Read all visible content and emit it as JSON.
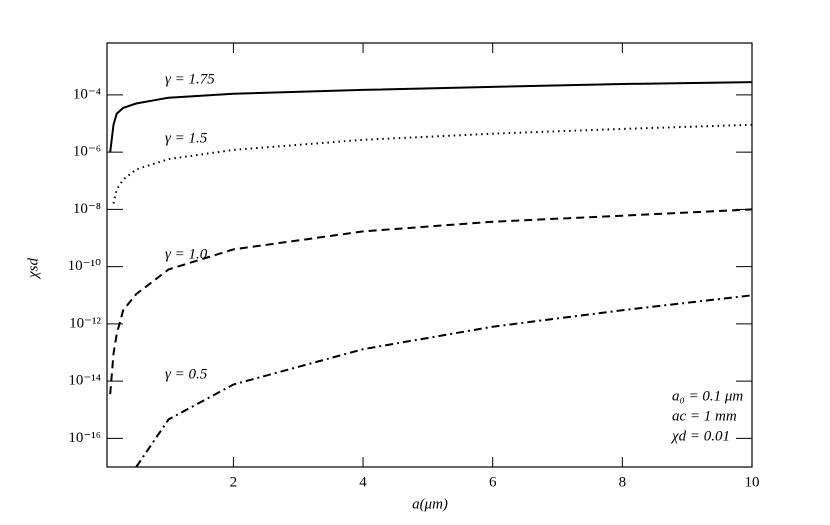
{
  "chart_data": {
    "type": "line",
    "x_label": "a(μm)",
    "y_label": "χsd",
    "yscale": "log",
    "xlim": [
      0.05,
      10
    ],
    "ylim": [
      1e-17,
      0.0065
    ],
    "xticks": [
      2,
      4,
      6,
      8,
      10
    ],
    "yticks": [
      {
        "value": 1e-16,
        "label": "10⁻¹⁶"
      },
      {
        "value": 1e-14,
        "label": "10⁻¹⁴"
      },
      {
        "value": 1e-12,
        "label": "10⁻¹²"
      },
      {
        "value": 1e-10,
        "label": "10⁻¹⁰"
      },
      {
        "value": 1e-08,
        "label": "10⁻⁸"
      },
      {
        "value": 1e-06,
        "label": "10⁻⁶"
      },
      {
        "value": 0.0001,
        "label": "10⁻⁴"
      }
    ],
    "x": [
      0.1,
      0.15,
      0.2,
      0.3,
      0.5,
      1,
      2,
      4,
      6,
      8,
      10
    ],
    "series": [
      {
        "name": "γ = 1.75",
        "color": "#000000",
        "dash": "solid",
        "values": [
          1e-06,
          9e-06,
          2.2e-05,
          3.5e-05,
          5e-05,
          8e-05,
          0.00011,
          0.00015,
          0.00019,
          0.00024,
          0.00028
        ]
      },
      {
        "name": "γ = 1.5",
        "color": "#000000",
        "dash": "dotted",
        "values": [
          null,
          1.6e-08,
          5e-08,
          1.1e-07,
          2.5e-07,
          5.7e-07,
          1.2e-06,
          2.7e-06,
          4.4e-06,
          6.5e-06,
          9e-06
        ]
      },
      {
        "name": "γ = 1.0",
        "color": "#000000",
        "dash": "dashed",
        "values": [
          3.5e-15,
          9e-14,
          4.4e-13,
          3e-12,
          1.1e-11,
          8e-11,
          4e-10,
          1.7e-09,
          3.7e-09,
          6e-09,
          1e-08
        ]
      },
      {
        "name": "γ = 0.5",
        "color": "#000000",
        "dash": "dashdot",
        "values": [
          null,
          null,
          null,
          null,
          1e-17,
          4.6e-16,
          7.6e-15,
          1.3e-13,
          8e-13,
          3e-12,
          1e-11
        ]
      }
    ],
    "annotations": [
      "a₀ = 0.1 μm",
      "ac = 1 mm",
      "χd = 0.01"
    ]
  }
}
